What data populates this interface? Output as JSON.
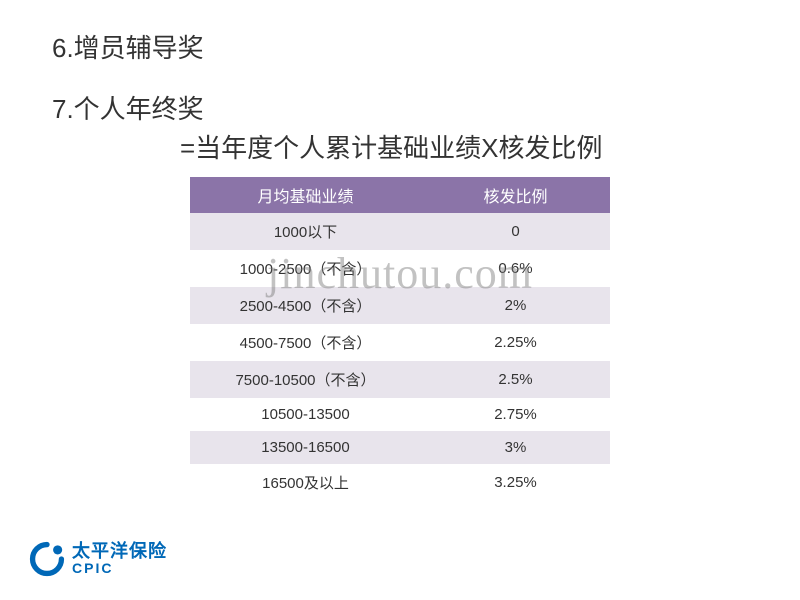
{
  "headings": {
    "item6": "6.增员辅导奖",
    "item7": "7.个人年终奖",
    "formula": "=当年度个人累计基础业绩X核发比例"
  },
  "table": {
    "header_bg": "#8b74a8",
    "row_odd_bg": "#e8e4ec",
    "row_even_bg": "#ffffff",
    "columns": [
      "月均基础业绩",
      "核发比例"
    ],
    "rows": [
      [
        "1000以下",
        "0"
      ],
      [
        "1000-2500（不含）",
        "0.6%"
      ],
      [
        "2500-4500（不含）",
        "2%"
      ],
      [
        "4500-7500（不含）",
        "2.25%"
      ],
      [
        "7500-10500（不含）",
        "2.5%"
      ],
      [
        "10500-13500",
        "2.75%"
      ],
      [
        "13500-16500",
        "3%"
      ],
      [
        "16500及以上",
        "3.25%"
      ]
    ]
  },
  "watermark": "jinchutou.com",
  "logo": {
    "color": "#0068b7",
    "cn": "太平洋保险",
    "en": "CPIC"
  }
}
